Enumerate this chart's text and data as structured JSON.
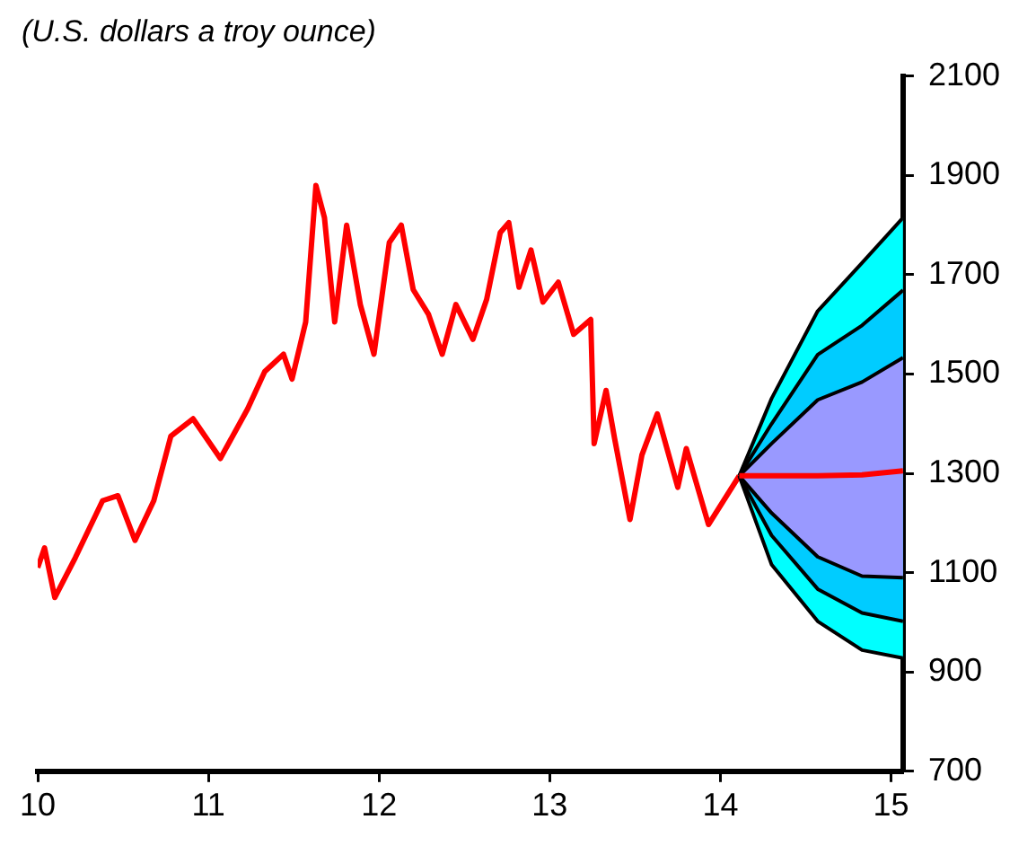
{
  "chart_data": {
    "type": "line",
    "subtitle": "(U.S. dollars a troy ounce)",
    "xlim": [
      10,
      15.07
    ],
    "xticks": [
      10,
      11,
      12,
      13,
      14,
      15
    ],
    "ylim": [
      700,
      2100
    ],
    "yticks": [
      700,
      900,
      1100,
      1300,
      1500,
      1700,
      1900,
      2100
    ],
    "grid": false,
    "legend": false,
    "marker": "none",
    "line_style": "solid",
    "series": [
      {
        "type": "line",
        "color": "#ff0000",
        "x": [
          10.0,
          10.04,
          10.1,
          10.22,
          10.38,
          10.47,
          10.57,
          10.68,
          10.78,
          10.91,
          11.07,
          11.23,
          11.33,
          11.44,
          11.49,
          11.57,
          11.63,
          11.68,
          11.74,
          11.81,
          11.89,
          11.97,
          12.06,
          12.13,
          12.2,
          12.29,
          12.37,
          12.45,
          12.55,
          12.63,
          12.71,
          12.76,
          12.82,
          12.89,
          12.96,
          13.05,
          13.14,
          13.24,
          13.26,
          13.33,
          13.38,
          13.47,
          13.54,
          13.63,
          13.75,
          13.8,
          13.93,
          14.11
        ],
        "values": [
          1110,
          1150,
          1050,
          1130,
          1245,
          1255,
          1165,
          1245,
          1375,
          1410,
          1330,
          1430,
          1505,
          1540,
          1490,
          1605,
          1880,
          1815,
          1605,
          1800,
          1640,
          1540,
          1765,
          1800,
          1670,
          1620,
          1540,
          1640,
          1570,
          1650,
          1785,
          1805,
          1675,
          1750,
          1645,
          1685,
          1580,
          1610,
          1360,
          1467,
          1370,
          1207,
          1337,
          1420,
          1272,
          1350,
          1197,
          1295
        ]
      },
      {
        "type": "area",
        "color": "#00ffff",
        "x": [
          14.11,
          14.3,
          14.57,
          14.83,
          15.07
        ],
        "values": [
          null,
          null,
          null,
          null,
          null
        ],
        "lower": [
          1295,
          1116,
          1002,
          944,
          928
        ],
        "upper": [
          1295,
          1451,
          1627,
          1724,
          1815
        ]
      },
      {
        "type": "area",
        "color": "#00ccff",
        "x": [
          14.11,
          14.3,
          14.57,
          14.83,
          15.07
        ],
        "values": [
          null,
          null,
          null,
          null,
          null
        ],
        "lower": [
          1295,
          1175,
          1067,
          1019,
          1002
        ],
        "upper": [
          1295,
          1400,
          1539,
          1598,
          1669
        ]
      },
      {
        "type": "area",
        "color": "#9999ff",
        "x": [
          14.11,
          14.3,
          14.57,
          14.83,
          15.07
        ],
        "values": [
          null,
          null,
          null,
          null,
          null
        ],
        "lower": [
          1295,
          1220,
          1132,
          1093,
          1090
        ],
        "upper": [
          1295,
          1360,
          1448,
          1484,
          1533
        ]
      },
      {
        "type": "line",
        "color": "#000000",
        "x": [
          14.11,
          14.3,
          14.57,
          14.83,
          15.07
        ],
        "values": [
          1295,
          1116,
          1002,
          944,
          928
        ]
      },
      {
        "type": "line",
        "color": "#000000",
        "x": [
          14.11,
          14.3,
          14.57,
          14.83,
          15.07
        ],
        "values": [
          1295,
          1451,
          1627,
          1724,
          1815
        ]
      },
      {
        "type": "line",
        "color": "#000000",
        "x": [
          14.11,
          14.3,
          14.57,
          14.83,
          15.07
        ],
        "values": [
          1295,
          1175,
          1067,
          1019,
          1002
        ]
      },
      {
        "type": "line",
        "color": "#000000",
        "x": [
          14.11,
          14.3,
          14.57,
          14.83,
          15.07
        ],
        "values": [
          1295,
          1400,
          1539,
          1598,
          1669
        ]
      },
      {
        "type": "line",
        "color": "#000000",
        "x": [
          14.11,
          14.3,
          14.57,
          14.83,
          15.07
        ],
        "values": [
          1295,
          1220,
          1132,
          1093,
          1090
        ]
      },
      {
        "type": "line",
        "color": "#000000",
        "x": [
          14.11,
          14.3,
          14.57,
          14.83,
          15.07
        ],
        "values": [
          1295,
          1360,
          1448,
          1484,
          1533
        ]
      },
      {
        "type": "line",
        "color": "#ff0000",
        "x": [
          14.11,
          14.57,
          14.83,
          15.07
        ],
        "values": [
          1295,
          1295,
          1297,
          1305
        ]
      }
    ]
  }
}
